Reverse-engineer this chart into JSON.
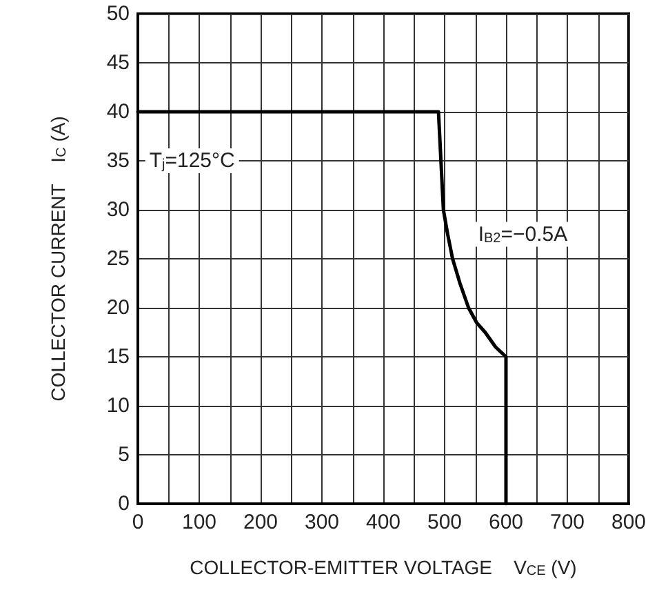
{
  "chart_data": {
    "type": "line",
    "xlabel": "COLLECTOR-EMITTER VOLTAGE    V$_{CE}$ (V)",
    "ylabel": "COLLECTOR CURRENT    I$_{C}$ (A)",
    "x": [
      0,
      490,
      494,
      498,
      505,
      513,
      525,
      539,
      552,
      566,
      583,
      600,
      600
    ],
    "series": [
      {
        "color": "#000000",
        "values": [
          40,
          40,
          35,
          30,
          27.5,
          25,
          22.5,
          20,
          18.5,
          17.5,
          16,
          15,
          0
        ]
      }
    ],
    "annotations": [
      "T$_{j}$=125°C",
      "I$_{B2}$=−0.5A"
    ],
    "xlim": [
      0,
      800
    ],
    "xticks": [
      0,
      {
        "value": 50,
        "label": null
      },
      100,
      {
        "value": 150,
        "label": null
      },
      200,
      {
        "value": 250,
        "label": null
      },
      300,
      {
        "value": 350,
        "label": null
      },
      400,
      {
        "value": 450,
        "label": null
      },
      500,
      {
        "value": 550,
        "label": null
      },
      600,
      {
        "value": 650,
        "label": null
      },
      700,
      {
        "value": 750,
        "label": null
      },
      800
    ],
    "ylim": [
      0,
      50
    ],
    "yticks": [
      0,
      5,
      10,
      15,
      20,
      25,
      30,
      35,
      40,
      45,
      50
    ],
    "grid": true,
    "marker": "none",
    "line_style": "solid"
  }
}
